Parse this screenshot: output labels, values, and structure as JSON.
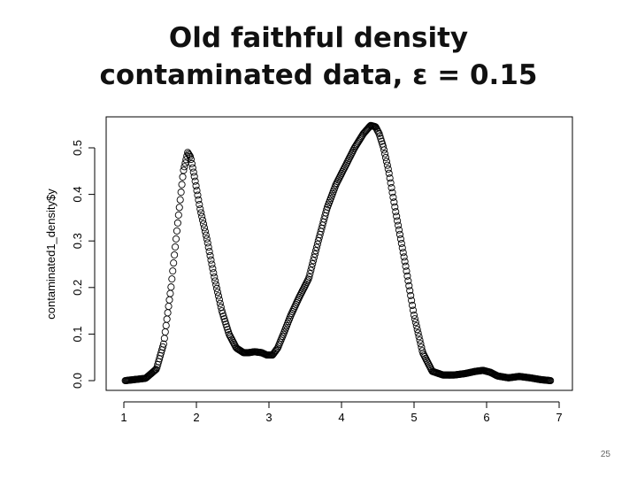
{
  "slide": {
    "title_line1": "Old faithful density",
    "title_line2": "contaminated data, ε = 0.15",
    "page_number": "25"
  },
  "chart_data": {
    "type": "scatter",
    "marker": "open-circle",
    "ylabel": "contaminated1_density$y",
    "xlabel": "",
    "xlim": [
      1,
      7
    ],
    "ylim": [
      0,
      0.55
    ],
    "x_ticks": [
      "1",
      "2",
      "3",
      "4",
      "5",
      "6",
      "7"
    ],
    "y_ticks": [
      "0.0",
      "0.1",
      "0.2",
      "0.3",
      "0.4",
      "0.5"
    ],
    "grid": false,
    "x_range": [
      1.02,
      6.88
    ],
    "n_points": 512,
    "curve": {
      "x": [
        1.02,
        1.3,
        1.45,
        1.55,
        1.65,
        1.75,
        1.82,
        1.88,
        1.92,
        1.97,
        2.05,
        2.15,
        2.25,
        2.35,
        2.45,
        2.55,
        2.65,
        2.72,
        2.8,
        2.9,
        2.97,
        3.05,
        3.12,
        3.2,
        3.3,
        3.42,
        3.55,
        3.68,
        3.8,
        3.92,
        4.05,
        4.18,
        4.3,
        4.4,
        4.47,
        4.52,
        4.58,
        4.65,
        4.75,
        4.88,
        5.0,
        5.12,
        5.25,
        5.4,
        5.55,
        5.7,
        5.85,
        5.95,
        6.05,
        6.15,
        6.3,
        6.45,
        6.6,
        6.75,
        6.88
      ],
      "y": [
        0.0,
        0.005,
        0.025,
        0.08,
        0.2,
        0.35,
        0.45,
        0.49,
        0.48,
        0.44,
        0.37,
        0.3,
        0.22,
        0.15,
        0.1,
        0.07,
        0.06,
        0.06,
        0.062,
        0.06,
        0.055,
        0.055,
        0.07,
        0.1,
        0.14,
        0.18,
        0.22,
        0.3,
        0.37,
        0.42,
        0.46,
        0.5,
        0.53,
        0.548,
        0.545,
        0.53,
        0.5,
        0.45,
        0.36,
        0.25,
        0.14,
        0.06,
        0.02,
        0.012,
        0.012,
        0.015,
        0.02,
        0.022,
        0.018,
        0.01,
        0.006,
        0.009,
        0.006,
        0.002,
        0.0
      ]
    }
  }
}
